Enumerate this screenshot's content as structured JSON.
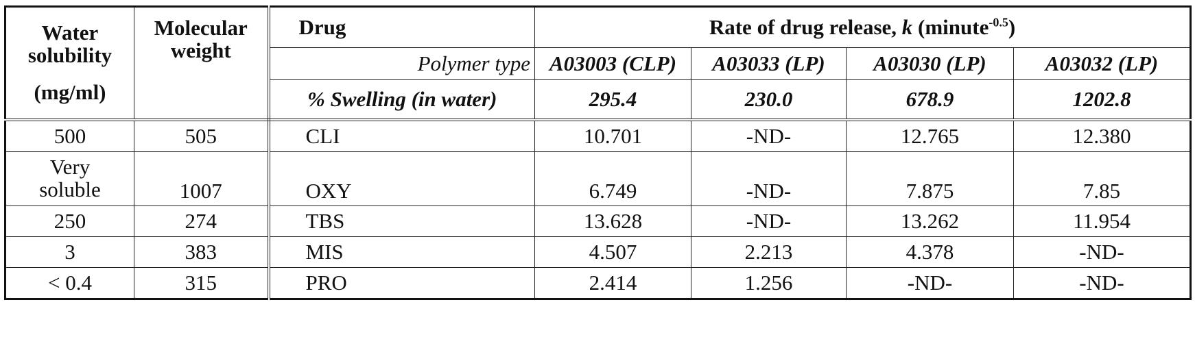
{
  "table": {
    "headers": {
      "water_solubility": [
        "Water",
        "solubility",
        "(mg/ml)"
      ],
      "molecular_weight": [
        "Molecular",
        "weight"
      ],
      "drug": "Drug",
      "rate_prefix": "Rate of drug release, ",
      "rate_k": "k",
      "rate_mid": " (minute",
      "rate_exp": "-0.5",
      "rate_suffix": ")",
      "polymer_type_label": "Polymer type",
      "swelling_label": "% Swelling (in water)"
    },
    "polymers": [
      {
        "name": "A03003 (CLP)",
        "swelling": "295.4"
      },
      {
        "name": "A03033 (LP)",
        "swelling": "230.0"
      },
      {
        "name": "A03030 (LP)",
        "swelling": "678.9"
      },
      {
        "name": "A03032 (LP)",
        "swelling": "1202.8"
      }
    ],
    "rows": [
      {
        "solubility": "500",
        "mw": "505",
        "drug": "CLI",
        "k": [
          "10.701",
          "-ND-",
          "12.765",
          "12.380"
        ]
      },
      {
        "solubility_line1": "Very",
        "solubility_line2": "soluble",
        "mw": "1007",
        "drug": "OXY",
        "k": [
          "6.749",
          "-ND-",
          "7.875",
          "7.85"
        ]
      },
      {
        "solubility": "250",
        "mw": "274",
        "drug": "TBS",
        "k": [
          "13.628",
          "-ND-",
          "13.262",
          "11.954"
        ]
      },
      {
        "solubility": "3",
        "mw": "383",
        "drug": "MIS",
        "k": [
          "4.507",
          "2.213",
          "4.378",
          "-ND-"
        ]
      },
      {
        "solubility": "< 0.4",
        "mw": "315",
        "drug": "PRO",
        "k": [
          "2.414",
          "1.256",
          "-ND-",
          "-ND-"
        ]
      }
    ]
  }
}
